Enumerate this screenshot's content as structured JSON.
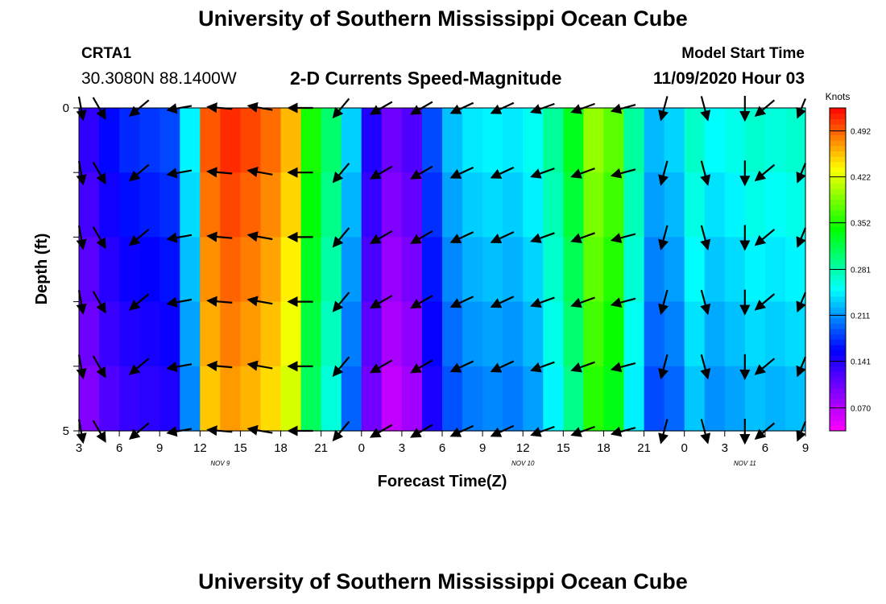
{
  "header": {
    "title": "University of Southern Mississippi Ocean Cube",
    "station_id": "CRTA1",
    "station_coords": "30.3080N 88.1400W",
    "model_label": "Model Start Time",
    "model_time": "11/09/2020 Hour 03"
  },
  "footer": {
    "title": "University of Southern Mississippi Ocean Cube"
  },
  "chart_data": {
    "type": "heatmap",
    "title": "2-D Currents Speed-Magnitude",
    "xlabel": "Forecast Time(Z)",
    "ylabel": "Depth (ft)",
    "y_ticks": [
      "0",
      "5"
    ],
    "ylim": [
      0,
      5
    ],
    "x_ticks": [
      "3",
      "6",
      "9",
      "12",
      "15",
      "18",
      "21",
      "0",
      "3",
      "6",
      "9",
      "12",
      "15",
      "18",
      "21",
      "0",
      "3",
      "6",
      "9"
    ],
    "x_tick_hours": [
      3,
      6,
      9,
      12,
      15,
      18,
      21,
      24,
      27,
      30,
      33,
      36,
      39,
      42,
      45,
      48,
      51,
      54,
      57
    ],
    "xlim_hours": [
      3,
      57
    ],
    "day_labels": [
      {
        "text": "NOV 9",
        "hour": 13.5
      },
      {
        "text": "NOV 10",
        "hour": 36
      },
      {
        "text": "NOV 11",
        "hour": 52.5
      }
    ],
    "colorbar": {
      "units": "Knots",
      "min": 0.035,
      "max": 0.527,
      "tick_values": [
        0.07,
        0.141,
        0.211,
        0.281,
        0.352,
        0.422,
        0.492
      ],
      "tick_labels": [
        "0.070",
        "0.141",
        "0.211",
        "0.281",
        "0.352",
        "0.422",
        "0.492"
      ]
    },
    "speed_profile_knots": [
      [
        3,
        0.1
      ],
      [
        4.5,
        0.13
      ],
      [
        6,
        0.15
      ],
      [
        9,
        0.16
      ],
      [
        11,
        0.17
      ],
      [
        12,
        0.4
      ],
      [
        13,
        0.5
      ],
      [
        16,
        0.48
      ],
      [
        18,
        0.46
      ],
      [
        19.5,
        0.42
      ],
      [
        20.5,
        0.3
      ],
      [
        22,
        0.28
      ],
      [
        23.5,
        0.2
      ],
      [
        24.5,
        0.13
      ],
      [
        25.5,
        0.1
      ],
      [
        27,
        0.07
      ],
      [
        28.5,
        0.13
      ],
      [
        30,
        0.2
      ],
      [
        33,
        0.23
      ],
      [
        36,
        0.22
      ],
      [
        38,
        0.26
      ],
      [
        40,
        0.32
      ],
      [
        42,
        0.41
      ],
      [
        43.5,
        0.3
      ],
      [
        45,
        0.23
      ],
      [
        46.5,
        0.18
      ],
      [
        48,
        0.25
      ],
      [
        50,
        0.25
      ],
      [
        51,
        0.17
      ],
      [
        52,
        0.26
      ],
      [
        54,
        0.24
      ],
      [
        57,
        0.25
      ]
    ],
    "depth_adjust_knots": [
      0.02,
      0.01,
      0.0,
      -0.01,
      -0.02
    ],
    "arrow_depths_ft": [
      0,
      1,
      2,
      3,
      4,
      5
    ],
    "arrow_times_hours": [
      3,
      4.5,
      7.5,
      10.5,
      13.5,
      16.5,
      19.5,
      22.5,
      25.5,
      28.5,
      31.5,
      34.5,
      37.5,
      40.5,
      43.5,
      46.5,
      49.5,
      52.5,
      54,
      57
    ],
    "arrow_directions_deg": [
      160,
      150,
      230,
      260,
      275,
      280,
      270,
      220,
      240,
      240,
      245,
      245,
      250,
      250,
      255,
      195,
      165,
      180,
      230,
      220
    ]
  }
}
